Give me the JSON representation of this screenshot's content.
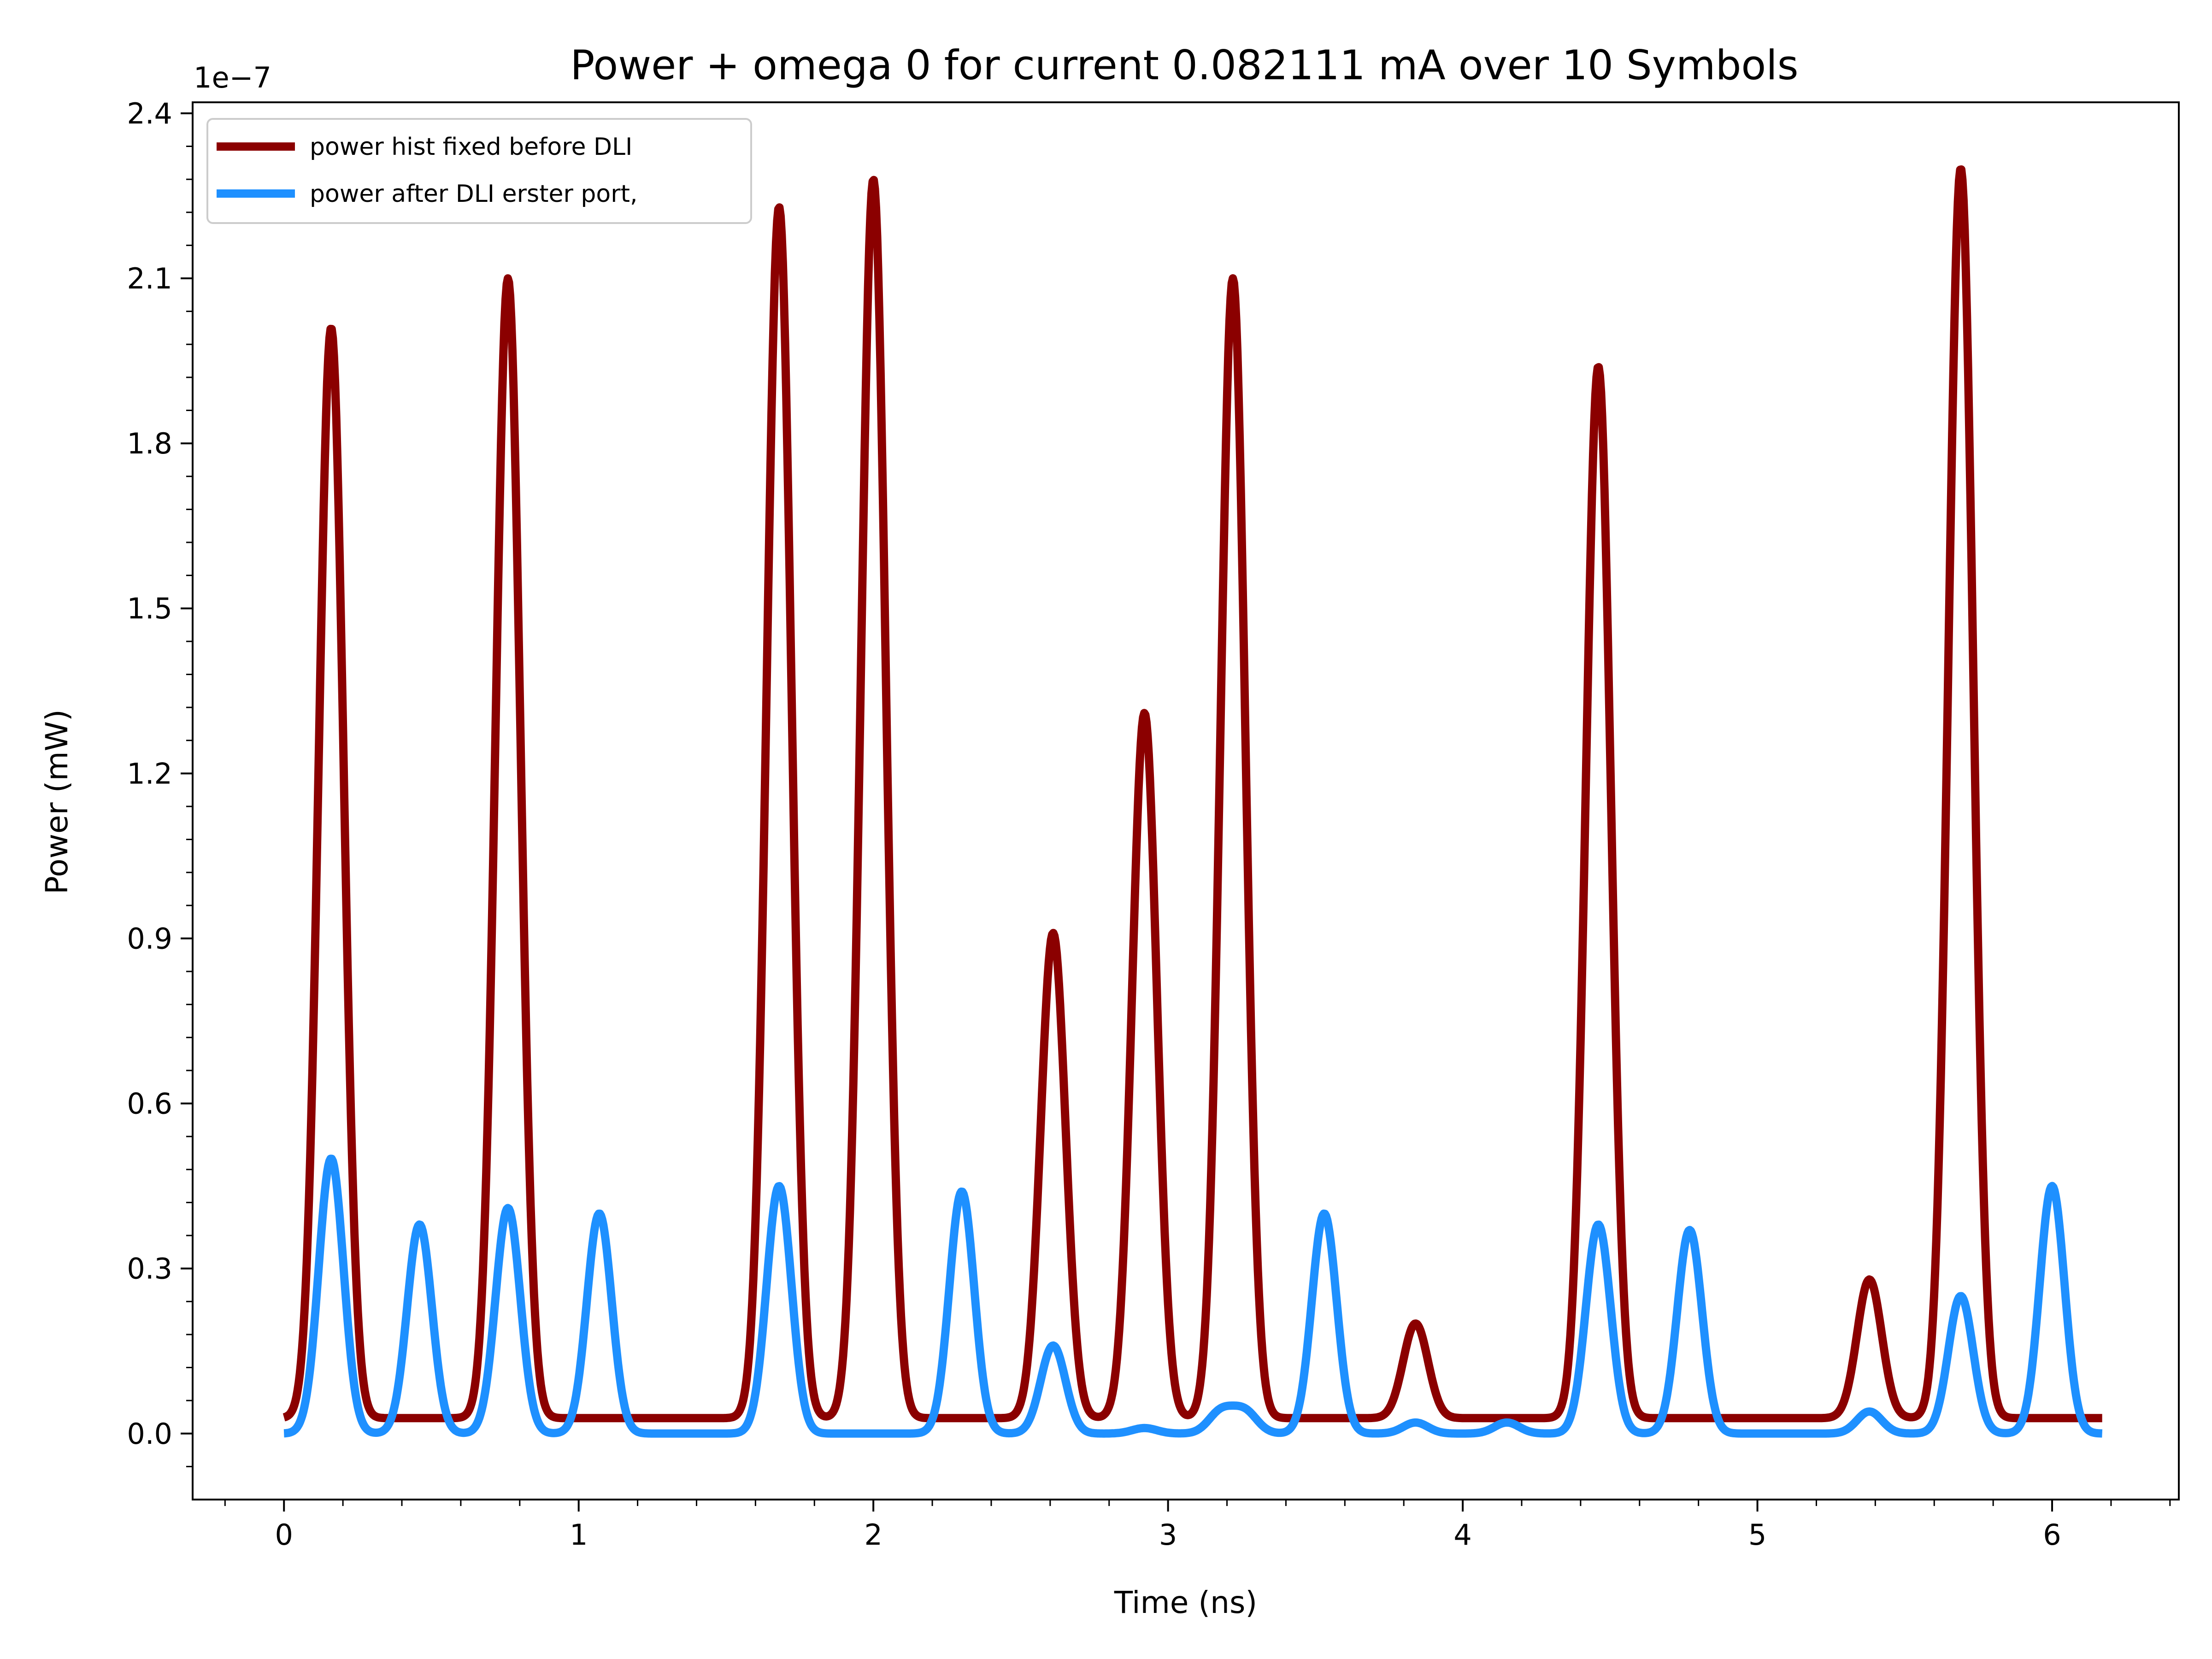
{
  "chart_data": {
    "type": "line",
    "title": "Power + omega 0 for current 0.082111 mA over 10 Symbols",
    "xlabel": "Time (ns)",
    "ylabel": "Power (mW)",
    "y_offset_text": "1e−7",
    "y_scale_exponent": -7,
    "xlim": [
      -0.31,
      6.43
    ],
    "ylim": [
      -0.12,
      2.42
    ],
    "x_ticks": [
      0,
      1,
      2,
      3,
      4,
      5,
      6
    ],
    "x_tick_labels": [
      "0",
      "1",
      "2",
      "3",
      "4",
      "5",
      "6"
    ],
    "y_ticks": [
      0.0,
      0.3,
      0.6,
      0.9,
      1.2,
      1.5,
      1.8,
      2.1,
      2.4
    ],
    "y_tick_labels": [
      "0.0",
      "0.3",
      "0.6",
      "0.9",
      "1.2",
      "1.5",
      "1.8",
      "2.1",
      "2.4"
    ],
    "grid": false,
    "legend_position": "upper-left",
    "x_range": [
      0,
      6.17
    ],
    "series": [
      {
        "name": "power hist fixed before DLI",
        "color": "#8b0000",
        "baseline": 0.028,
        "peaks": [
          {
            "x": 0.16,
            "y": 2.01
          },
          {
            "x": 0.76,
            "y": 2.1
          },
          {
            "x": 1.68,
            "y": 2.23
          },
          {
            "x": 2.0,
            "y": 2.28
          },
          {
            "x": 2.61,
            "y": 0.91
          },
          {
            "x": 2.92,
            "y": 1.31
          },
          {
            "x": 3.22,
            "y": 2.1
          },
          {
            "x": 3.84,
            "y": 0.2
          },
          {
            "x": 4.46,
            "y": 1.94
          },
          {
            "x": 5.38,
            "y": 0.28
          },
          {
            "x": 5.69,
            "y": 2.3
          }
        ]
      },
      {
        "name": "power after DLI erster port,",
        "color": "#1e90ff",
        "baseline": 0.0,
        "peaks": [
          {
            "x": 0.16,
            "y": 0.5
          },
          {
            "x": 0.46,
            "y": 0.38
          },
          {
            "x": 0.76,
            "y": 0.41
          },
          {
            "x": 1.07,
            "y": 0.4
          },
          {
            "x": 1.68,
            "y": 0.45
          },
          {
            "x": 2.3,
            "y": 0.44
          },
          {
            "x": 2.61,
            "y": 0.16
          },
          {
            "x": 2.92,
            "y": 0.01
          },
          {
            "x": 3.18,
            "y": 0.04
          },
          {
            "x": 3.26,
            "y": 0.04
          },
          {
            "x": 3.53,
            "y": 0.4
          },
          {
            "x": 3.84,
            "y": 0.02
          },
          {
            "x": 4.15,
            "y": 0.02
          },
          {
            "x": 4.46,
            "y": 0.38
          },
          {
            "x": 4.77,
            "y": 0.37
          },
          {
            "x": 5.38,
            "y": 0.04
          },
          {
            "x": 5.69,
            "y": 0.25
          },
          {
            "x": 6.0,
            "y": 0.45
          }
        ]
      }
    ]
  }
}
